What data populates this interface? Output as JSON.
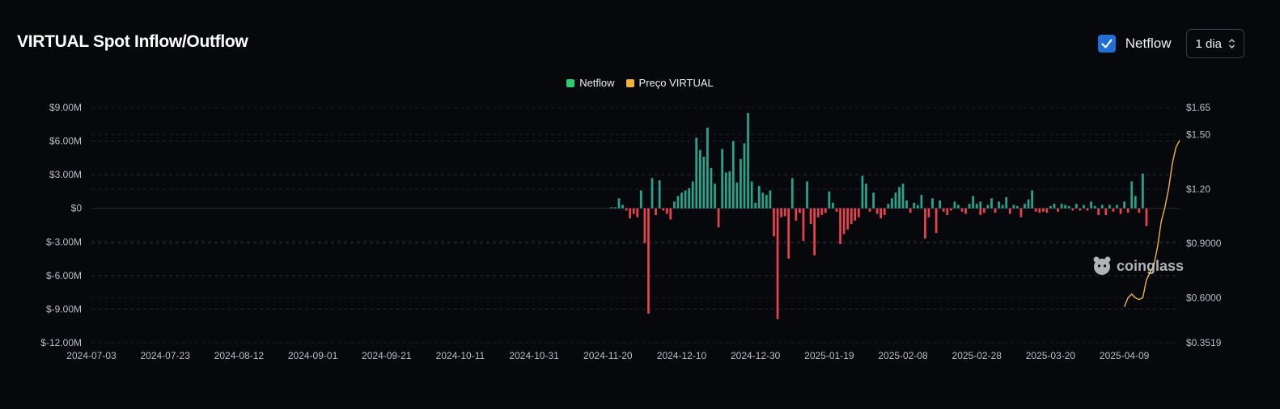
{
  "header": {
    "title": "VIRTUAL Spot Inflow/Outflow",
    "netflow_toggle_label": "Netflow",
    "netflow_checked": true,
    "interval_value": "1 dia"
  },
  "watermark": "coinglass",
  "colors": {
    "positive": "#26a48c",
    "negative": "#e8424e",
    "price": "#f2b33d",
    "legend_netflow": "#2ecb77",
    "checkbox": "#1f6fd6"
  },
  "chart_data": {
    "type": "bar",
    "legend": [
      "Netflow",
      "Preço VIRTUAL"
    ],
    "x_ticks": [
      "2024-07-03",
      "2024-07-23",
      "2024-08-12",
      "2024-09-01",
      "2024-09-21",
      "2024-10-11",
      "2024-10-31",
      "2024-11-20",
      "2024-12-10",
      "2024-12-30",
      "2025-01-19",
      "2025-02-08",
      "2025-02-28",
      "2025-03-20",
      "2025-04-09"
    ],
    "x_range": [
      "2024-07-03",
      "2025-04-24"
    ],
    "y_left_ticks": [
      "$9.00M",
      "$6.00M",
      "$3.00M",
      "$0",
      "$-3.00M",
      "$-6.00M",
      "$-9.00M",
      "$-12.00M"
    ],
    "y_left_range": [
      -12,
      9
    ],
    "y_right_ticks": [
      "$1.65",
      "$1.50",
      "$1.20",
      "$0.9000",
      "$0.6000",
      "$0.3519"
    ],
    "y_right_range": [
      0.3519,
      1.65
    ],
    "grid": true,
    "series": [
      {
        "name": "Netflow",
        "unit": "USD millions",
        "points": [
          [
            "2024-11-21",
            0.1
          ],
          [
            "2024-11-22",
            0.1
          ],
          [
            "2024-11-23",
            0.9
          ],
          [
            "2024-11-24",
            0.3
          ],
          [
            "2024-11-25",
            -0.2
          ],
          [
            "2024-11-26",
            -0.9
          ],
          [
            "2024-11-27",
            -0.5
          ],
          [
            "2024-11-28",
            -0.8
          ],
          [
            "2024-11-29",
            1.6
          ],
          [
            "2024-11-30",
            -3.1
          ],
          [
            "2024-12-01",
            -9.4
          ],
          [
            "2024-12-02",
            2.7
          ],
          [
            "2024-12-03",
            -0.6
          ],
          [
            "2024-12-04",
            2.5
          ],
          [
            "2024-12-05",
            -0.2
          ],
          [
            "2024-12-06",
            -0.5
          ],
          [
            "2024-12-07",
            -1.0
          ],
          [
            "2024-12-08",
            0.6
          ],
          [
            "2024-12-09",
            1.1
          ],
          [
            "2024-12-10",
            1.4
          ],
          [
            "2024-12-11",
            1.6
          ],
          [
            "2024-12-12",
            1.8
          ],
          [
            "2024-12-13",
            2.4
          ],
          [
            "2024-12-14",
            6.3
          ],
          [
            "2024-12-15",
            5.2
          ],
          [
            "2024-12-16",
            4.6
          ],
          [
            "2024-12-17",
            7.2
          ],
          [
            "2024-12-18",
            3.6
          ],
          [
            "2024-12-19",
            2.2
          ],
          [
            "2024-12-20",
            -1.7
          ],
          [
            "2024-12-21",
            5.3
          ],
          [
            "2024-12-22",
            3.2
          ],
          [
            "2024-12-23",
            3.3
          ],
          [
            "2024-12-24",
            6.0
          ],
          [
            "2024-12-25",
            2.3
          ],
          [
            "2024-12-26",
            4.4
          ],
          [
            "2024-12-27",
            5.8
          ],
          [
            "2024-12-28",
            8.5
          ],
          [
            "2024-12-29",
            2.4
          ],
          [
            "2024-12-30",
            0.5
          ],
          [
            "2024-12-31",
            2.0
          ],
          [
            "2025-01-01",
            1.4
          ],
          [
            "2025-01-02",
            1.2
          ],
          [
            "2025-01-03",
            1.6
          ],
          [
            "2025-01-04",
            -2.5
          ],
          [
            "2025-01-05",
            -9.9
          ],
          [
            "2025-01-06",
            -0.8
          ],
          [
            "2025-01-07",
            -0.7
          ],
          [
            "2025-01-08",
            -4.5
          ],
          [
            "2025-01-09",
            2.7
          ],
          [
            "2025-01-10",
            -1.1
          ],
          [
            "2025-01-11",
            -0.4
          ],
          [
            "2025-01-12",
            -2.9
          ],
          [
            "2025-01-13",
            2.4
          ],
          [
            "2025-01-14",
            -1.4
          ],
          [
            "2025-01-15",
            -4.2
          ],
          [
            "2025-01-16",
            -0.8
          ],
          [
            "2025-01-17",
            -0.6
          ],
          [
            "2025-01-18",
            -0.4
          ],
          [
            "2025-01-19",
            1.5
          ],
          [
            "2025-01-20",
            0.5
          ],
          [
            "2025-01-21",
            -0.3
          ],
          [
            "2025-01-22",
            -3.2
          ],
          [
            "2025-01-23",
            -2.3
          ],
          [
            "2025-01-24",
            -1.9
          ],
          [
            "2025-01-25",
            -1.4
          ],
          [
            "2025-01-26",
            -1.1
          ],
          [
            "2025-01-27",
            -0.8
          ],
          [
            "2025-01-28",
            2.9
          ],
          [
            "2025-01-29",
            2.2
          ],
          [
            "2025-01-30",
            -0.3
          ],
          [
            "2025-01-31",
            1.4
          ],
          [
            "2025-02-01",
            -0.5
          ],
          [
            "2025-02-02",
            -0.9
          ],
          [
            "2025-02-03",
            -0.6
          ],
          [
            "2025-02-04",
            0.4
          ],
          [
            "2025-02-05",
            0.9
          ],
          [
            "2025-02-06",
            1.4
          ],
          [
            "2025-02-07",
            1.9
          ],
          [
            "2025-02-08",
            2.2
          ],
          [
            "2025-02-09",
            0.7
          ],
          [
            "2025-02-10",
            -0.4
          ],
          [
            "2025-02-11",
            0.5
          ],
          [
            "2025-02-12",
            0.3
          ],
          [
            "2025-02-13",
            1.2
          ],
          [
            "2025-02-14",
            -2.7
          ],
          [
            "2025-02-15",
            -0.8
          ],
          [
            "2025-02-16",
            0.9
          ],
          [
            "2025-02-17",
            -2.2
          ],
          [
            "2025-02-18",
            0.7
          ],
          [
            "2025-02-19",
            -0.3
          ],
          [
            "2025-02-20",
            -0.6
          ],
          [
            "2025-02-21",
            -0.2
          ],
          [
            "2025-02-22",
            0.6
          ],
          [
            "2025-02-23",
            0.3
          ],
          [
            "2025-02-24",
            -0.3
          ],
          [
            "2025-02-25",
            -0.5
          ],
          [
            "2025-02-26",
            0.4
          ],
          [
            "2025-02-27",
            1.1
          ],
          [
            "2025-02-28",
            0.4
          ],
          [
            "2025-02-29",
            -0.6
          ],
          [
            "2025-03-01",
            0.6
          ],
          [
            "2025-03-02",
            -0.4
          ],
          [
            "2025-03-03",
            0.3
          ],
          [
            "2025-03-04",
            0.9
          ],
          [
            "2025-03-05",
            -0.4
          ],
          [
            "2025-03-06",
            0.6
          ],
          [
            "2025-03-07",
            0.3
          ],
          [
            "2025-03-08",
            1.0
          ],
          [
            "2025-03-09",
            -0.5
          ],
          [
            "2025-03-10",
            0.3
          ],
          [
            "2025-03-11",
            0.2
          ],
          [
            "2025-03-12",
            -0.8
          ],
          [
            "2025-03-13",
            0.4
          ],
          [
            "2025-03-14",
            0.8
          ],
          [
            "2025-03-15",
            1.6
          ],
          [
            "2025-03-16",
            -0.3
          ],
          [
            "2025-03-17",
            -0.4
          ],
          [
            "2025-03-18",
            -0.3
          ],
          [
            "2025-03-19",
            -0.4
          ],
          [
            "2025-03-20",
            0.2
          ],
          [
            "2025-03-21",
            0.4
          ],
          [
            "2025-03-22",
            -0.3
          ],
          [
            "2025-03-23",
            0.4
          ],
          [
            "2025-03-24",
            0.3
          ],
          [
            "2025-03-25",
            0.2
          ],
          [
            "2025-03-26",
            -0.2
          ],
          [
            "2025-03-27",
            0.4
          ],
          [
            "2025-03-28",
            -0.2
          ],
          [
            "2025-03-29",
            0.3
          ],
          [
            "2025-03-30",
            -0.2
          ],
          [
            "2025-03-31",
            0.6
          ],
          [
            "2025-04-01",
            0.2
          ],
          [
            "2025-04-02",
            -0.6
          ],
          [
            "2025-04-03",
            0.3
          ],
          [
            "2025-04-04",
            -0.6
          ],
          [
            "2025-04-05",
            0.3
          ],
          [
            "2025-04-06",
            -0.3
          ],
          [
            "2025-04-07",
            0.3
          ],
          [
            "2025-04-08",
            -0.5
          ],
          [
            "2025-04-09",
            0.6
          ],
          [
            "2025-04-10",
            -0.4
          ],
          [
            "2025-04-11",
            2.4
          ],
          [
            "2025-04-12",
            1.1
          ],
          [
            "2025-04-13",
            -0.4
          ],
          [
            "2025-04-14",
            3.1
          ],
          [
            "2025-04-15",
            -1.6
          ]
        ]
      },
      {
        "name": "Preço VIRTUAL",
        "unit": "USD",
        "points": [
          [
            "2025-04-09",
            0.55
          ],
          [
            "2025-04-10",
            0.6
          ],
          [
            "2025-04-11",
            0.62
          ],
          [
            "2025-04-12",
            0.6
          ],
          [
            "2025-04-13",
            0.59
          ],
          [
            "2025-04-14",
            0.6
          ],
          [
            "2025-04-15",
            0.7
          ],
          [
            "2025-04-16",
            0.74
          ],
          [
            "2025-04-17",
            0.78
          ],
          [
            "2025-04-18",
            0.88
          ],
          [
            "2025-04-19",
            1.02
          ],
          [
            "2025-04-20",
            1.1
          ],
          [
            "2025-04-21",
            1.2
          ],
          [
            "2025-04-22",
            1.34
          ],
          [
            "2025-04-23",
            1.43
          ],
          [
            "2025-04-24",
            1.47
          ]
        ]
      }
    ]
  }
}
